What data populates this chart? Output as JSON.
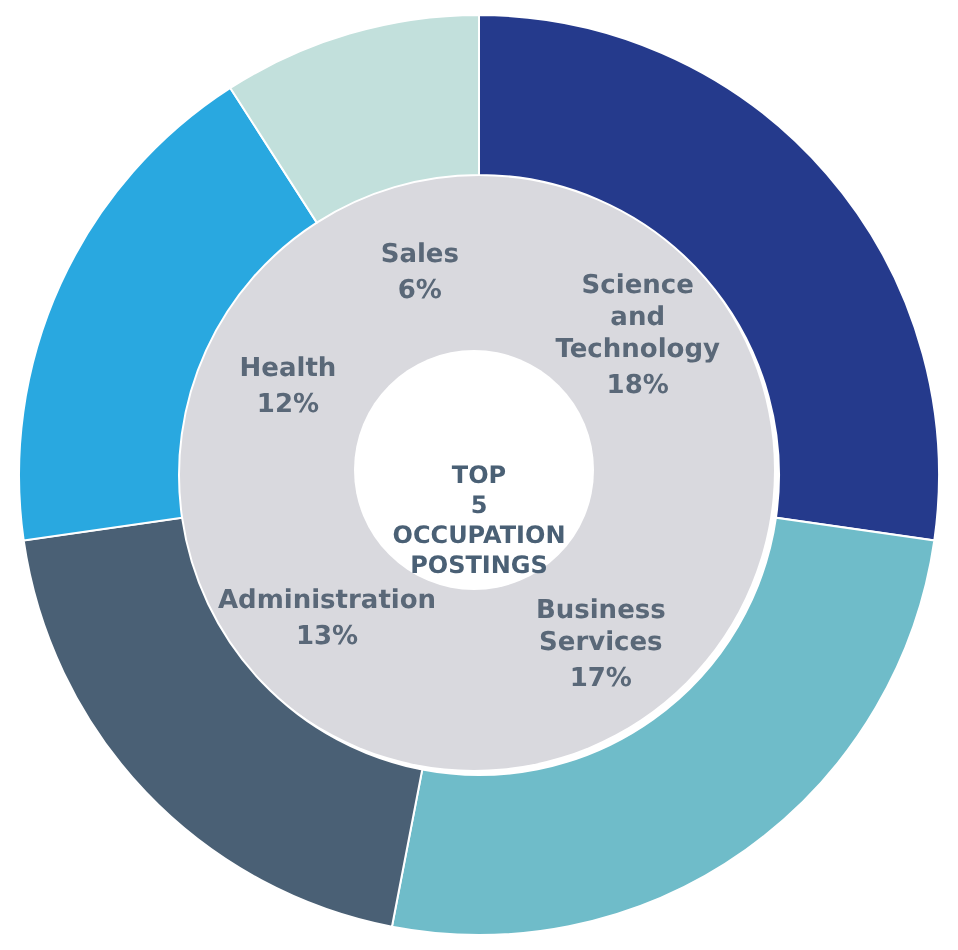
{
  "chart_data": {
    "type": "donut",
    "title": "TOP 5 OCCUPATION POSTINGS",
    "categories": [
      "Science and Technology",
      "Business Services",
      "Administration",
      "Health",
      "Sales"
    ],
    "values": [
      18,
      17,
      13,
      12,
      6
    ],
    "value_labels": [
      "18%",
      "17%",
      "13%",
      "12%",
      "6%"
    ],
    "colors": [
      "#253a8c",
      "#6fbcc9",
      "#4a6075",
      "#29a8e0",
      "#c2e0dc"
    ]
  }
}
